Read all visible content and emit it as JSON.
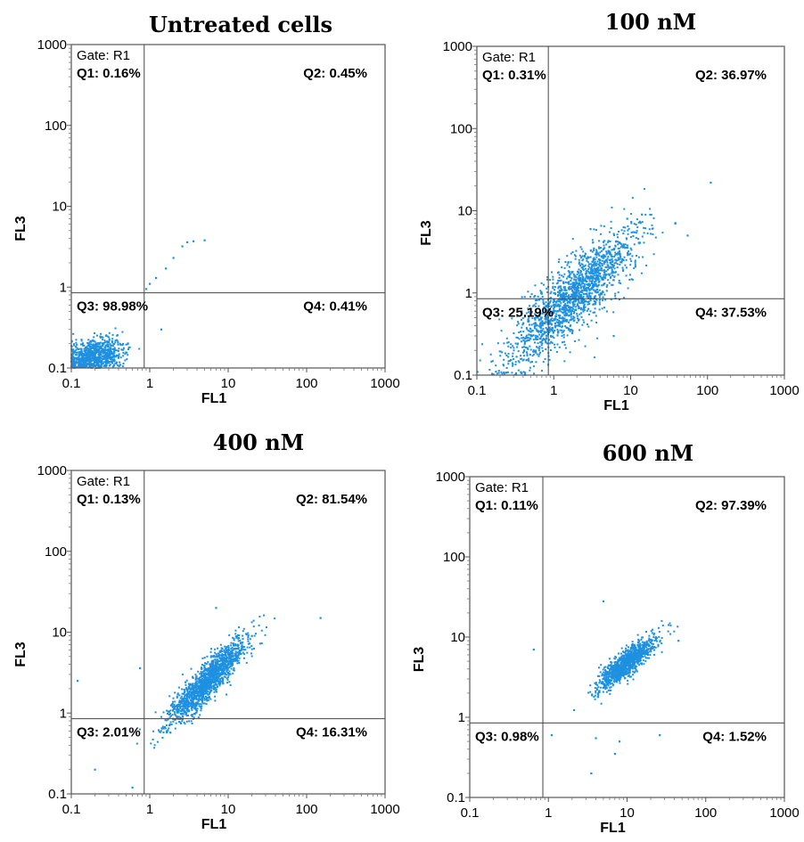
{
  "chart_data": [
    {
      "type": "scatter",
      "title": "Untreated cells",
      "xlabel": "FL1",
      "ylabel": "FL3",
      "x_scale": "log",
      "y_scale": "log",
      "xlim": [
        0.1,
        1000
      ],
      "ylim": [
        0.1,
        1000
      ],
      "x_ticks": [
        "0.1",
        "1",
        "10",
        "100",
        "1000"
      ],
      "y_ticks": [
        "0.1",
        "1",
        "10",
        "100",
        "1000"
      ],
      "gate": "Gate: R1",
      "quadrant_threshold": {
        "x": 0.85,
        "y": 0.85
      },
      "quadrants": {
        "q1": "Q1: 0.16%",
        "q2": "Q2: 0.45%",
        "q3": "Q3: 98.98%",
        "q4": "Q4: 0.41%"
      },
      "color": "#1e90e0",
      "distribution": {
        "n": 900,
        "center_log": [
          -0.72,
          -0.85
        ],
        "spread_log": [
          0.2,
          0.11
        ],
        "corr": 0.35,
        "clip_min": -1
      },
      "outliers": [
        [
          1.2,
          1.3
        ],
        [
          1.6,
          1.7
        ],
        [
          2.0,
          2.3
        ],
        [
          2.6,
          3.2
        ],
        [
          3.0,
          3.6
        ],
        [
          3.6,
          3.7
        ],
        [
          5.0,
          3.8
        ],
        [
          1.0,
          1.1
        ],
        [
          0.9,
          0.95
        ],
        [
          1.4,
          0.3
        ]
      ]
    },
    {
      "type": "scatter",
      "title": "100 nM",
      "xlabel": "FL1",
      "ylabel": "FL3",
      "x_scale": "log",
      "y_scale": "log",
      "xlim": [
        0.1,
        1000
      ],
      "ylim": [
        0.1,
        1000
      ],
      "x_ticks": [
        "0.1",
        "1",
        "10",
        "100",
        "1000"
      ],
      "y_ticks": [
        "0.1",
        "1",
        "10",
        "100",
        "1000"
      ],
      "gate": "Gate: R1",
      "quadrant_threshold": {
        "x": 0.85,
        "y": 0.85
      },
      "quadrants": {
        "q1": "Q1: 0.31%",
        "q2": "Q2: 36.97%",
        "q3": "Q3: 25.19%",
        "q4": "Q4: 37.53%"
      },
      "color": "#1e90e0",
      "distribution": {
        "n": 1700,
        "center_log": [
          0.25,
          -0.05
        ],
        "spread_log": [
          0.42,
          0.42
        ],
        "corr": 0.85,
        "clip_min": -1
      },
      "outliers": [
        [
          110,
          22
        ],
        [
          38,
          7
        ],
        [
          55,
          5
        ],
        [
          9,
          8
        ],
        [
          14,
          9
        ],
        [
          3,
          6
        ],
        [
          6,
          0.3
        ]
      ]
    },
    {
      "type": "scatter",
      "title": "400 nM",
      "xlabel": "FL1",
      "ylabel": "FL3",
      "x_scale": "log",
      "y_scale": "log",
      "xlim": [
        0.1,
        1000
      ],
      "ylim": [
        0.1,
        1000
      ],
      "x_ticks": [
        "0.1",
        "1",
        "10",
        "100",
        "1000"
      ],
      "y_ticks": [
        "0.1",
        "1",
        "10",
        "100",
        "1000"
      ],
      "gate": "Gate: R1",
      "quadrant_threshold": {
        "x": 0.85,
        "y": 0.85
      },
      "quadrants": {
        "q1": "Q1: 0.13%",
        "q2": "Q2: 81.54%",
        "q3": "Q3: 2.01%",
        "q4": "Q4: 16.31%"
      },
      "color": "#1e90e0",
      "distribution": {
        "n": 1500,
        "center_log": [
          0.72,
          0.38
        ],
        "spread_log": [
          0.26,
          0.27
        ],
        "corr": 0.9,
        "clip_min": -1
      },
      "outliers": [
        [
          150,
          15
        ],
        [
          0.12,
          2.5
        ],
        [
          0.75,
          3.6
        ],
        [
          7,
          20
        ],
        [
          20,
          9
        ],
        [
          0.2,
          0.2
        ],
        [
          0.6,
          0.12
        ]
      ]
    },
    {
      "type": "scatter",
      "title": "600 nM",
      "xlabel": "FL1",
      "ylabel": "FL3",
      "x_scale": "log",
      "y_scale": "log",
      "xlim": [
        0.1,
        1000
      ],
      "ylim": [
        0.1,
        1000
      ],
      "x_ticks": [
        "0.1",
        "1",
        "10",
        "100",
        "1000"
      ],
      "y_ticks": [
        "0.1",
        "1",
        "10",
        "100",
        "1000"
      ],
      "gate": "Gate: R1",
      "quadrant_threshold": {
        "x": 0.85,
        "y": 0.85
      },
      "quadrants": {
        "q1": "Q1: 0.11%",
        "q2": "Q2: 97.39%",
        "q3": "Q3: 0.98%",
        "q4": "Q4: 1.52%"
      },
      "color": "#1e90e0",
      "distribution": {
        "n": 1100,
        "center_log": [
          1.0,
          0.68
        ],
        "spread_log": [
          0.18,
          0.16
        ],
        "corr": 0.85,
        "clip_min": -1
      },
      "outliers": [
        [
          5,
          28
        ],
        [
          0.65,
          7
        ],
        [
          1.1,
          0.6
        ],
        [
          4,
          0.55
        ],
        [
          8,
          0.5
        ],
        [
          26,
          0.6
        ],
        [
          3.5,
          0.2
        ],
        [
          7,
          0.35
        ],
        [
          45,
          9
        ]
      ]
    }
  ]
}
